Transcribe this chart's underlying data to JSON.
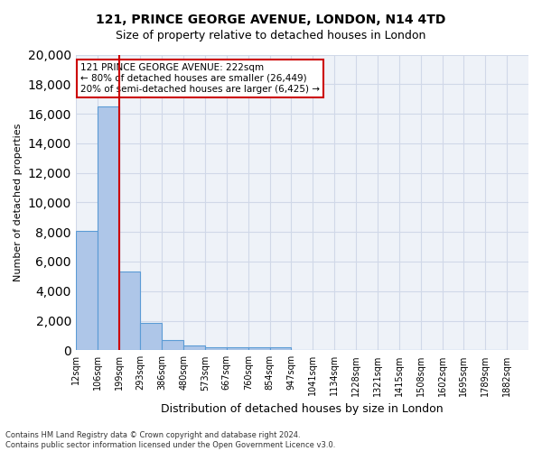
{
  "title1": "121, PRINCE GEORGE AVENUE, LONDON, N14 4TD",
  "title2": "Size of property relative to detached houses in London",
  "xlabel": "Distribution of detached houses by size in London",
  "ylabel": "Number of detached properties",
  "annotation_line1": "121 PRINCE GEORGE AVENUE: 222sqm",
  "annotation_line2": "← 80% of detached houses are smaller (26,449)",
  "annotation_line3": "20% of semi-detached houses are larger (6,425) →",
  "red_line_x": 2,
  "bin_labels": [
    "12sqm",
    "106sqm",
    "199sqm",
    "293sqm",
    "386sqm",
    "480sqm",
    "573sqm",
    "667sqm",
    "760sqm",
    "854sqm",
    "947sqm",
    "1041sqm",
    "1134sqm",
    "1228sqm",
    "1321sqm",
    "1415sqm",
    "1508sqm",
    "1602sqm",
    "1695sqm",
    "1789sqm",
    "1882sqm"
  ],
  "bar_heights": [
    8100,
    16500,
    5300,
    1850,
    700,
    320,
    230,
    200,
    190,
    175,
    0,
    0,
    0,
    0,
    0,
    0,
    0,
    0,
    0,
    0
  ],
  "bar_color": "#aec6e8",
  "bar_edge_color": "#5b9bd5",
  "grid_color": "#d0d8e8",
  "background_color": "#eef2f8",
  "red_line_color": "#cc0000",
  "annotation_box_color": "#cc0000",
  "ylim": [
    0,
    20000
  ],
  "yticks": [
    0,
    2000,
    4000,
    6000,
    8000,
    10000,
    12000,
    14000,
    16000,
    18000,
    20000
  ],
  "footnote": "Contains HM Land Registry data © Crown copyright and database right 2024.\nContains public sector information licensed under the Open Government Licence v3.0."
}
